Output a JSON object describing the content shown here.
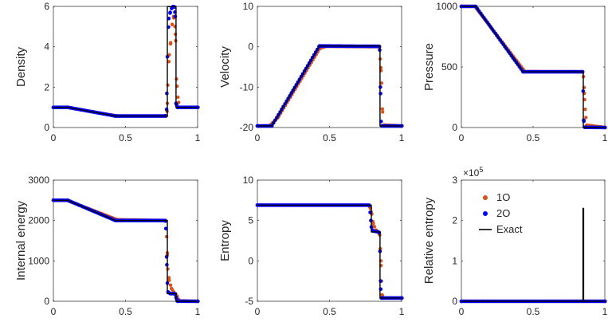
{
  "chart_data": [
    {
      "type": "line",
      "ylabel": "Density",
      "xlim": [
        0,
        1
      ],
      "ylim": [
        0,
        6
      ],
      "xticks": [
        0,
        0.5,
        1
      ],
      "xtick_labels": [
        "0",
        "0.5",
        "1"
      ],
      "yticks": [
        0,
        2,
        4,
        6
      ],
      "ytick_labels": [
        "0",
        "2",
        "4",
        "6"
      ],
      "exact": {
        "x": [
          0,
          0.1,
          0.43,
          0.78,
          0.79,
          0.79,
          0.85,
          0.85,
          1
        ],
        "y": [
          1,
          1,
          0.57,
          0.57,
          0.57,
          5.99,
          5.99,
          1,
          1
        ]
      },
      "first_order": {
        "x": [
          0,
          0.09,
          0.44,
          0.78,
          0.785,
          0.79,
          0.8,
          0.81,
          0.82,
          0.83,
          0.84,
          0.845,
          0.85,
          0.86,
          0.87,
          1
        ],
        "y": [
          1,
          1,
          0.57,
          0.57,
          0.8,
          2.1,
          3.6,
          4.2,
          5.1,
          5.5,
          5.0,
          4.3,
          2.4,
          1.5,
          1.0,
          1
        ]
      },
      "second_order": {
        "x": [
          0,
          0.1,
          0.43,
          0.775,
          0.785,
          0.79,
          0.8,
          0.81,
          0.82,
          0.83,
          0.84,
          0.845,
          0.85,
          0.86,
          1
        ],
        "y": [
          1,
          1,
          0.57,
          0.57,
          0.9,
          3.5,
          5.4,
          5.7,
          5.9,
          5.99,
          5.97,
          5.5,
          1.2,
          1.0,
          1
        ]
      }
    },
    {
      "type": "line",
      "ylabel": "Velocity",
      "xlim": [
        0,
        1
      ],
      "ylim": [
        -20,
        10
      ],
      "xticks": [
        0,
        0.5,
        1
      ],
      "xtick_labels": [
        "0",
        "0.5",
        "1"
      ],
      "yticks": [
        -20,
        -10,
        0,
        10
      ],
      "ytick_labels": [
        "-20",
        "-10",
        "0",
        "10"
      ],
      "exact": {
        "x": [
          0,
          0.1,
          0.43,
          0.85,
          0.85,
          1
        ],
        "y": [
          -19.6,
          -19.6,
          0.2,
          0.2,
          -19.6,
          -19.6
        ]
      },
      "first_order": {
        "x": [
          0,
          0.08,
          0.14,
          0.43,
          0.47,
          0.845,
          0.848,
          0.853,
          0.858,
          0.863,
          0.875,
          1
        ],
        "y": [
          -19.6,
          -19.6,
          -17.5,
          -0.4,
          0.1,
          0.0,
          -3.0,
          -5.2,
          -9.0,
          -15.4,
          -19.4,
          -19.6
        ]
      },
      "second_order": {
        "x": [
          0,
          0.1,
          0.43,
          0.845,
          0.848,
          0.853,
          0.858,
          0.863,
          1
        ],
        "y": [
          -19.6,
          -19.6,
          0.2,
          0.1,
          -0.8,
          -10.0,
          -18.5,
          -19.6,
          -19.6
        ]
      }
    },
    {
      "type": "line",
      "ylabel": "Pressure",
      "xlim": [
        0,
        1
      ],
      "ylim": [
        0,
        1000
      ],
      "xticks": [
        0,
        0.5,
        1
      ],
      "xtick_labels": [
        "0",
        "0.5",
        "1"
      ],
      "yticks": [
        0,
        500,
        1000
      ],
      "ytick_labels": [
        "0",
        "500",
        "1000"
      ],
      "exact": {
        "x": [
          0,
          0.1,
          0.43,
          0.85,
          0.85,
          1
        ],
        "y": [
          1000,
          1000,
          460,
          460,
          0.01,
          0.01
        ]
      },
      "first_order": {
        "x": [
          0,
          0.09,
          0.44,
          0.843,
          0.848,
          0.852,
          0.856,
          0.86,
          0.87,
          1
        ],
        "y": [
          1000,
          1000,
          462,
          460,
          420,
          330,
          230,
          150,
          20,
          0.01
        ]
      },
      "second_order": {
        "x": [
          0,
          0.1,
          0.43,
          0.845,
          0.849,
          0.853,
          0.86,
          1
        ],
        "y": [
          1000,
          1000,
          460,
          460,
          300,
          60,
          2,
          0.01
        ]
      }
    },
    {
      "type": "line",
      "ylabel": "Internal energy",
      "xlim": [
        0,
        1
      ],
      "ylim": [
        0,
        3000
      ],
      "xticks": [
        0,
        0.5,
        1
      ],
      "xtick_labels": [
        "0",
        "0.5",
        "1"
      ],
      "yticks": [
        0,
        1000,
        2000,
        3000
      ],
      "ytick_labels": [
        "0",
        "1000",
        "2000",
        "3000"
      ],
      "exact": {
        "x": [
          0,
          0.1,
          0.43,
          0.79,
          0.79,
          0.85,
          0.85,
          1
        ],
        "y": [
          2500,
          2500,
          2000,
          2000,
          190,
          190,
          0,
          0
        ]
      },
      "first_order": {
        "x": [
          0,
          0.09,
          0.44,
          0.775,
          0.782,
          0.786,
          0.79,
          0.8,
          0.815,
          0.83,
          0.845,
          0.855,
          0.87,
          1
        ],
        "y": [
          2500,
          2500,
          2020,
          2000,
          1600,
          1200,
          800,
          520,
          320,
          230,
          180,
          120,
          10,
          0
        ]
      },
      "second_order": {
        "x": [
          0,
          0.1,
          0.43,
          0.775,
          0.78,
          0.785,
          0.79,
          0.795,
          0.81,
          0.835,
          0.845,
          0.85,
          0.86,
          1
        ],
        "y": [
          2500,
          2500,
          2000,
          2000,
          1800,
          1100,
          450,
          230,
          190,
          190,
          180,
          100,
          2,
          0
        ]
      }
    },
    {
      "type": "line",
      "ylabel": "Entropy",
      "xlim": [
        0,
        1
      ],
      "ylim": [
        -5,
        10
      ],
      "xticks": [
        0,
        0.5,
        1
      ],
      "xtick_labels": [
        "0",
        "0.5",
        "1"
      ],
      "yticks": [
        -5,
        0,
        5,
        10
      ],
      "ytick_labels": [
        "-5",
        "0",
        "5",
        "10"
      ],
      "exact": {
        "x": [
          0,
          0.78,
          0.79,
          0.79,
          0.85,
          0.85,
          1
        ],
        "y": [
          6.9,
          6.9,
          6.9,
          3.6,
          3.6,
          -4.6,
          -4.6
        ]
      },
      "first_order": {
        "x": [
          0,
          0.77,
          0.78,
          0.79,
          0.8,
          0.82,
          0.835,
          0.845,
          0.849,
          0.853,
          0.857,
          0.862,
          0.87,
          1
        ],
        "y": [
          6.9,
          6.9,
          6.5,
          5.8,
          4.6,
          3.8,
          3.6,
          3.2,
          1.5,
          0.0,
          -2.5,
          -4.2,
          -4.6,
          -4.6
        ]
      },
      "second_order": {
        "x": [
          0,
          0.775,
          0.782,
          0.79,
          0.8,
          0.835,
          0.845,
          0.85,
          0.855,
          0.86,
          1
        ],
        "y": [
          6.9,
          6.9,
          6.0,
          4.2,
          3.7,
          3.6,
          3.5,
          1.2,
          -3.5,
          -4.6,
          -4.6
        ]
      }
    },
    {
      "type": "line",
      "ylabel": "Relative entropy",
      "xlim": [
        0,
        1
      ],
      "ylim": [
        0,
        300000
      ],
      "xticks": [
        0,
        0.5,
        1
      ],
      "xtick_labels": [
        "0",
        "0.5",
        "1"
      ],
      "yticks": [
        0,
        100000,
        200000,
        300000
      ],
      "ytick_labels": [
        "0",
        "1",
        "2",
        "3"
      ],
      "exponent_label": "×10",
      "exponent_power": "5",
      "exact": {
        "x": [
          0,
          0.848,
          0.848,
          0.852,
          0.852,
          1
        ],
        "y": [
          0,
          0,
          230000,
          230000,
          0,
          0
        ]
      },
      "first_order": {
        "x": [
          0,
          1
        ],
        "y": [
          0,
          0
        ]
      },
      "second_order": {
        "x": [
          0,
          1
        ],
        "y": [
          0,
          0
        ]
      },
      "legend": {
        "position": "top-left",
        "entries": [
          {
            "label": "1O",
            "style": "marker",
            "color": "#d95319"
          },
          {
            "label": "2O",
            "style": "marker",
            "color": "#0000ff"
          },
          {
            "label": "Exact",
            "style": "line",
            "color": "#000000"
          }
        ]
      }
    }
  ],
  "colors": {
    "first_order": "#d95319",
    "second_order": "#0000ff",
    "exact": "#000000",
    "axes": "#262626"
  }
}
